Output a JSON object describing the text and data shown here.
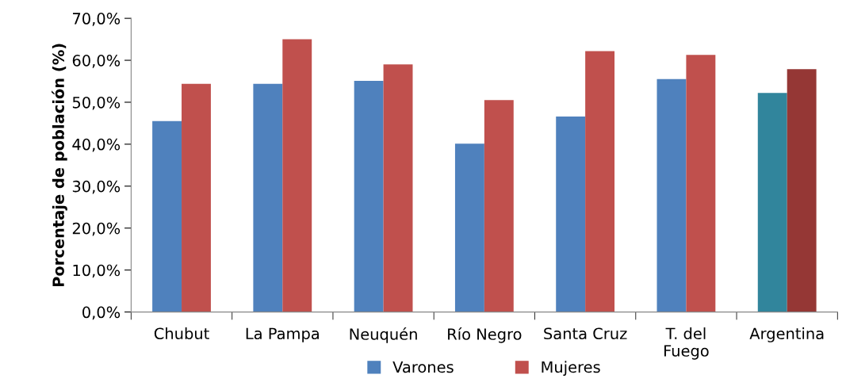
{
  "chart_data": {
    "type": "bar",
    "ylabel": "Porcentaje de población (%)",
    "categories": [
      "Chubut",
      "La Pampa",
      "Neuquén",
      "Río Negro",
      "Santa Cruz",
      "T. del\nFuego",
      "Argentina"
    ],
    "series": [
      {
        "name": "Varones",
        "color": "#4f81bd",
        "colors": [
          "#4f81bd",
          "#4f81bd",
          "#4f81bd",
          "#4f81bd",
          "#4f81bd",
          "#4f81bd",
          "#31859c"
        ],
        "values": [
          45.5,
          54.4,
          55.1,
          40.1,
          46.6,
          55.5,
          52.2
        ]
      },
      {
        "name": "Mujeres",
        "color": "#c0504d",
        "colors": [
          "#c0504d",
          "#c0504d",
          "#c0504d",
          "#c0504d",
          "#c0504d",
          "#c0504d",
          "#953735"
        ],
        "values": [
          54.4,
          65.0,
          59.0,
          50.5,
          62.2,
          61.3,
          57.9
        ]
      }
    ],
    "ylim": [
      0,
      70
    ],
    "yticks": [
      {
        "value": 0,
        "label": "0,0%"
      },
      {
        "value": 10,
        "label": "10,0%"
      },
      {
        "value": 20,
        "label": "20,0%"
      },
      {
        "value": 30,
        "label": "30,0%"
      },
      {
        "value": 40,
        "label": "40,0%"
      },
      {
        "value": 50,
        "label": "50,0%"
      },
      {
        "value": 60,
        "label": "60,0%"
      },
      {
        "value": 70,
        "label": "70,0%"
      }
    ],
    "grid": false,
    "legend": "bottom"
  }
}
